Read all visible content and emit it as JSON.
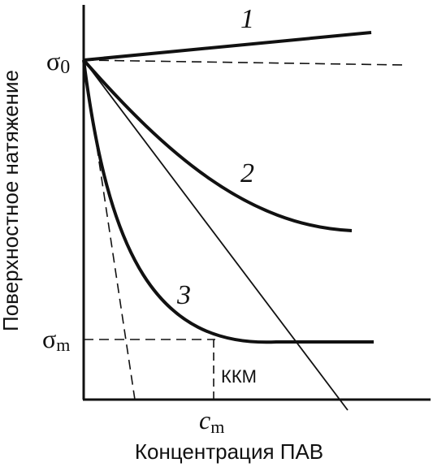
{
  "figure": {
    "y_axis_label": "Поверхностное натяжение",
    "x_axis_label": "Концентрация ПАВ",
    "sigma0_label": "σ0",
    "sigma0_base": "σ",
    "sigma0_sub": "0",
    "sigmam_base": "σ",
    "sigmam_sub": "m",
    "cm_base": "c",
    "cm_sub": "m",
    "kkm_label": "ККМ",
    "curves": [
      {
        "label": "1"
      },
      {
        "label": "2"
      },
      {
        "label": "3"
      }
    ],
    "colors": {
      "ink": "#111111",
      "background": "#ffffff"
    }
  }
}
